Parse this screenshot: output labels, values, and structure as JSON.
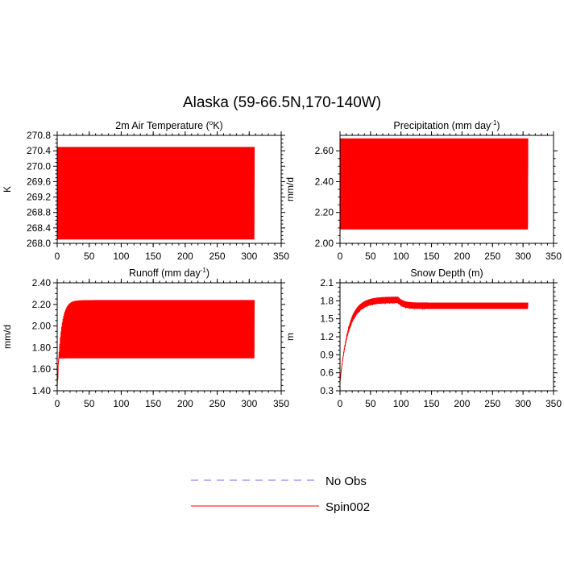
{
  "title": "Alaska (59-66.5N,170-140W)",
  "colors": {
    "spin": "#ff0000",
    "noobs": "#6b6bff",
    "axis": "#000000"
  },
  "legend": {
    "items": [
      {
        "label": "No Obs",
        "style": "dashed",
        "color": "#6b6bff"
      },
      {
        "label": "Spin002",
        "style": "solid",
        "color": "#ff0000"
      }
    ]
  },
  "chart_data": [
    {
      "type": "line",
      "title": "2m Air Temperature (",
      "title_sup": "o",
      "title_tail": "K)",
      "ylabel": "K",
      "xlim": [
        0,
        350
      ],
      "ylim": [
        268.0,
        270.8
      ],
      "xticks": [
        "0",
        "50",
        "100",
        "150",
        "200",
        "250",
        "300",
        "350"
      ],
      "yticks": [
        "268.0",
        "268.4",
        "268.8",
        "269.2",
        "269.6",
        "270.0",
        "270.4",
        "270.8"
      ],
      "series": [
        {
          "name": "Spin002",
          "kind": "seasonal",
          "n_years": 308,
          "low": 268.1,
          "high": 270.5,
          "mid": 269.35
        }
      ]
    },
    {
      "type": "line",
      "title": "Precipitation (mm day",
      "title_sup": "-1",
      "title_tail": ")",
      "ylabel": "mm/d",
      "xlim": [
        0,
        350
      ],
      "ylim": [
        2.0,
        2.7
      ],
      "xticks": [
        "0",
        "50",
        "100",
        "150",
        "200",
        "250",
        "300",
        "350"
      ],
      "yticks": [
        "2.00",
        "2.20",
        "2.40",
        "2.60"
      ],
      "series": [
        {
          "name": "Spin002",
          "kind": "seasonal",
          "n_years": 308,
          "low": 2.09,
          "high": 2.68,
          "mid": 2.5
        }
      ]
    },
    {
      "type": "line",
      "title": "Runoff (mm day",
      "title_sup": "-1",
      "title_tail": ")",
      "ylabel": "mm/d",
      "xlim": [
        0,
        350
      ],
      "ylim": [
        1.4,
        2.4
      ],
      "xticks": [
        "0",
        "50",
        "100",
        "150",
        "200",
        "250",
        "300",
        "350"
      ],
      "yticks": [
        "1.40",
        "1.60",
        "1.80",
        "2.00",
        "2.20",
        "2.40"
      ],
      "series": [
        {
          "name": "Spin002",
          "kind": "spinup-osc",
          "n_years": 308,
          "start": 1.45,
          "low": 1.7,
          "high": 2.24,
          "settle_years": 30
        }
      ]
    },
    {
      "type": "line",
      "title": "Snow Depth (m)",
      "title_sup": "",
      "title_tail": "",
      "ylabel": "m",
      "xlim": [
        0,
        350
      ],
      "ylim": [
        0.3,
        2.1
      ],
      "xticks": [
        "0",
        "50",
        "100",
        "150",
        "200",
        "250",
        "300",
        "350"
      ],
      "yticks": [
        "0.3",
        "0.6",
        "0.9",
        "1.2",
        "1.5",
        "1.8",
        "2.1"
      ],
      "series": [
        {
          "name": "Spin002",
          "kind": "spinup-snow",
          "n_years": 308,
          "start": 0.45,
          "peak": 1.8,
          "plateau": 1.7,
          "osc": 0.07
        }
      ]
    }
  ]
}
